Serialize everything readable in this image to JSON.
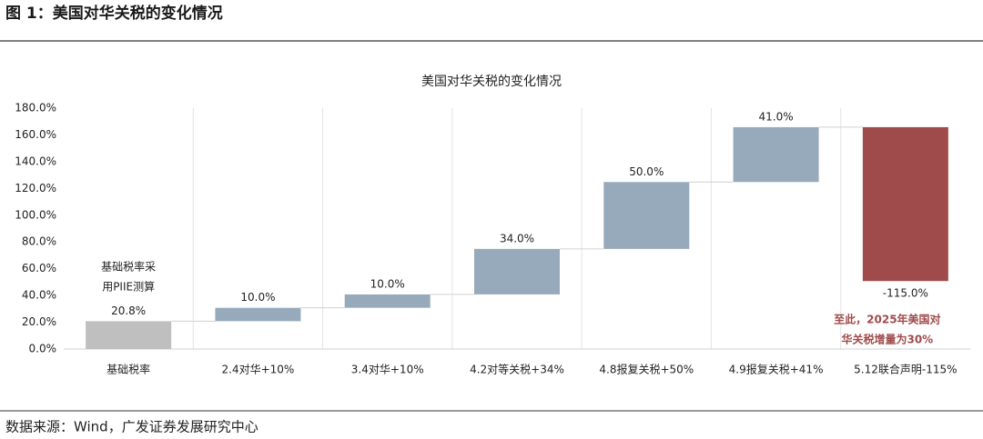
{
  "header": {
    "title": "图 1：美国对华关税的变化情况"
  },
  "chart_data": {
    "type": "waterfall",
    "title": "美国对华关税的变化情况",
    "categories": [
      "基础税率",
      "2.4对华+10%",
      "3.4对华+10%",
      "4.2对等关税+34%",
      "4.8报复关税+50%",
      "4.9报复关税+41%",
      "5.12联合声明-115%"
    ],
    "values": [
      20.8,
      10,
      10,
      34,
      50,
      41,
      -115
    ],
    "value_labels": [
      "20.8%",
      "10.0%",
      "10.0%",
      "34.0%",
      "50.0%",
      "41.0%",
      "-115.0%"
    ],
    "colors": {
      "base": "#bfbfbf",
      "increase": "#97aabb",
      "decrease": "#a04b4b"
    },
    "ylim": [
      0,
      180
    ],
    "yticks": [
      {
        "value": 0,
        "label": "0.0%"
      },
      {
        "value": 20,
        "label": "20.0%"
      },
      {
        "value": 40,
        "label": "40.0%"
      },
      {
        "value": 60,
        "label": "60.0%"
      },
      {
        "value": 80,
        "label": "80.0%"
      },
      {
        "value": 100,
        "label": "100.0%"
      },
      {
        "value": 120,
        "label": "120.0%"
      },
      {
        "value": 140,
        "label": "140.0%"
      },
      {
        "value": 160,
        "label": "160.0%"
      },
      {
        "value": 180,
        "label": "180.0%"
      }
    ],
    "annotations": [
      {
        "lines": [
          "基础税率采",
          "用PIIE测算"
        ]
      },
      {
        "lines": [
          "至此，2025年美国对",
          "华关税增量为30%"
        ],
        "color": "#a04b4b"
      }
    ]
  },
  "footer": {
    "source": "数据来源：Wind，广发证券发展研究中心"
  }
}
